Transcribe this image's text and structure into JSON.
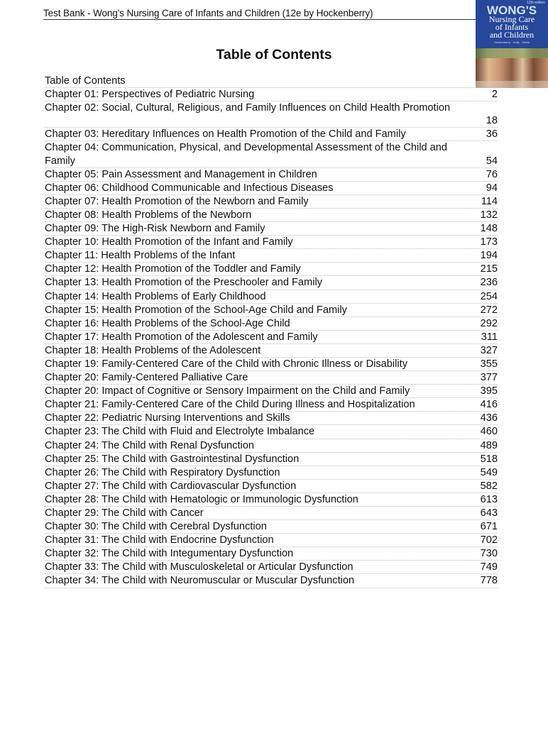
{
  "header": {
    "title": "Test Bank - Wong's Nursing Care of Infants and Children (12e by Hockenberry)"
  },
  "cover": {
    "brand": "WONG'S",
    "subtitle_lines": [
      "Nursing Care",
      "of Infants",
      "and Children"
    ],
    "authors": "Hockenberry · Duffy · Gibbs",
    "edition": "12th edition"
  },
  "page_title": "Table of Contents",
  "toc": {
    "heading": "Table of Contents",
    "entries": [
      {
        "title": "Chapter 01: Perspectives of Pediatric Nursing",
        "page": "2"
      },
      {
        "title": "Chapter 02: Social, Cultural, Religious, and Family Influences on Child Health Promotion",
        "page": "18"
      },
      {
        "title": "Chapter 03: Hereditary Influences on Health Promotion of the Child and Family",
        "page": "36"
      },
      {
        "title": "Chapter 04: Communication, Physical, and Developmental Assessment of the Child and Family",
        "page": "54"
      },
      {
        "title": "Chapter 05: Pain Assessment and Management in Children",
        "page": "76"
      },
      {
        "title": "Chapter 06: Childhood Communicable and Infectious Diseases",
        "page": "94"
      },
      {
        "title": "Chapter 07: Health Promotion of the Newborn and Family",
        "page": "114"
      },
      {
        "title": "Chapter 08: Health Problems of the Newborn",
        "page": "132"
      },
      {
        "title": "Chapter 09: The High-Risk Newborn and Family",
        "page": "148"
      },
      {
        "title": "Chapter 10: Health Promotion of the Infant and Family",
        "page": "173"
      },
      {
        "title": "Chapter 11: Health Problems of the Infant",
        "page": "194"
      },
      {
        "title": "Chapter 12: Health Promotion of the Toddler and Family",
        "page": "215"
      },
      {
        "title": "Chapter 13: Health Promotion of the Preschooler and Family",
        "page": "236"
      },
      {
        "title": "Chapter 14: Health Problems of Early Childhood",
        "page": "254"
      },
      {
        "title": "Chapter 15: Health Promotion of the School-Age Child and Family",
        "page": "272"
      },
      {
        "title": "Chapter 16: Health Problems of the School-Age Child",
        "page": "292"
      },
      {
        "title": "Chapter 17: Health Promotion of the Adolescent and Family",
        "page": "311"
      },
      {
        "title": "Chapter 18: Health Problems of the Adolescent",
        "page": "327"
      },
      {
        "title": "Chapter 19: Family-Centered Care of the Child with Chronic Illness or Disability",
        "page": "355"
      },
      {
        "title": "Chapter 20: Family-Centered Palliative Care",
        "page": "377"
      },
      {
        "title": "Chapter 20: Impact of Cognitive or Sensory Impairment on the Child and Family",
        "page": "395"
      },
      {
        "title": "Chapter 21: Family-Centered Care of the Child During Illness and Hospitalization",
        "page": "416"
      },
      {
        "title": "Chapter 22: Pediatric Nursing Interventions and Skills",
        "page": "436"
      },
      {
        "title": "Chapter 23: The Child with Fluid and Electrolyte Imbalance",
        "page": "460"
      },
      {
        "title": "Chapter 24: The Child with Renal Dysfunction",
        "page": "489"
      },
      {
        "title": "Chapter 25: The Child with Gastrointestinal Dysfunction",
        "page": "518"
      },
      {
        "title": "Chapter 26: The Child with Respiratory Dysfunction",
        "page": "549"
      },
      {
        "title": "Chapter 27: The Child with Cardiovascular Dysfunction",
        "page": "582"
      },
      {
        "title": "Chapter 28: The Child with Hematologic or Immunologic Dysfunction",
        "page": "613"
      },
      {
        "title": "Chapter 29: The Child with Cancer",
        "page": "643"
      },
      {
        "title": "Chapter 30: The Child with Cerebral Dysfunction",
        "page": "671"
      },
      {
        "title": "Chapter 31: The Child with Endocrine Dysfunction",
        "page": "702"
      },
      {
        "title": "Chapter 32: The Child with Integumentary Dysfunction",
        "page": "730"
      },
      {
        "title": "Chapter 33: The Child with Musculoskeletal or Articular Dysfunction",
        "page": "749"
      },
      {
        "title": "Chapter 34: The Child with Neuromuscular or Muscular Dysfunction",
        "page": "778"
      }
    ]
  }
}
